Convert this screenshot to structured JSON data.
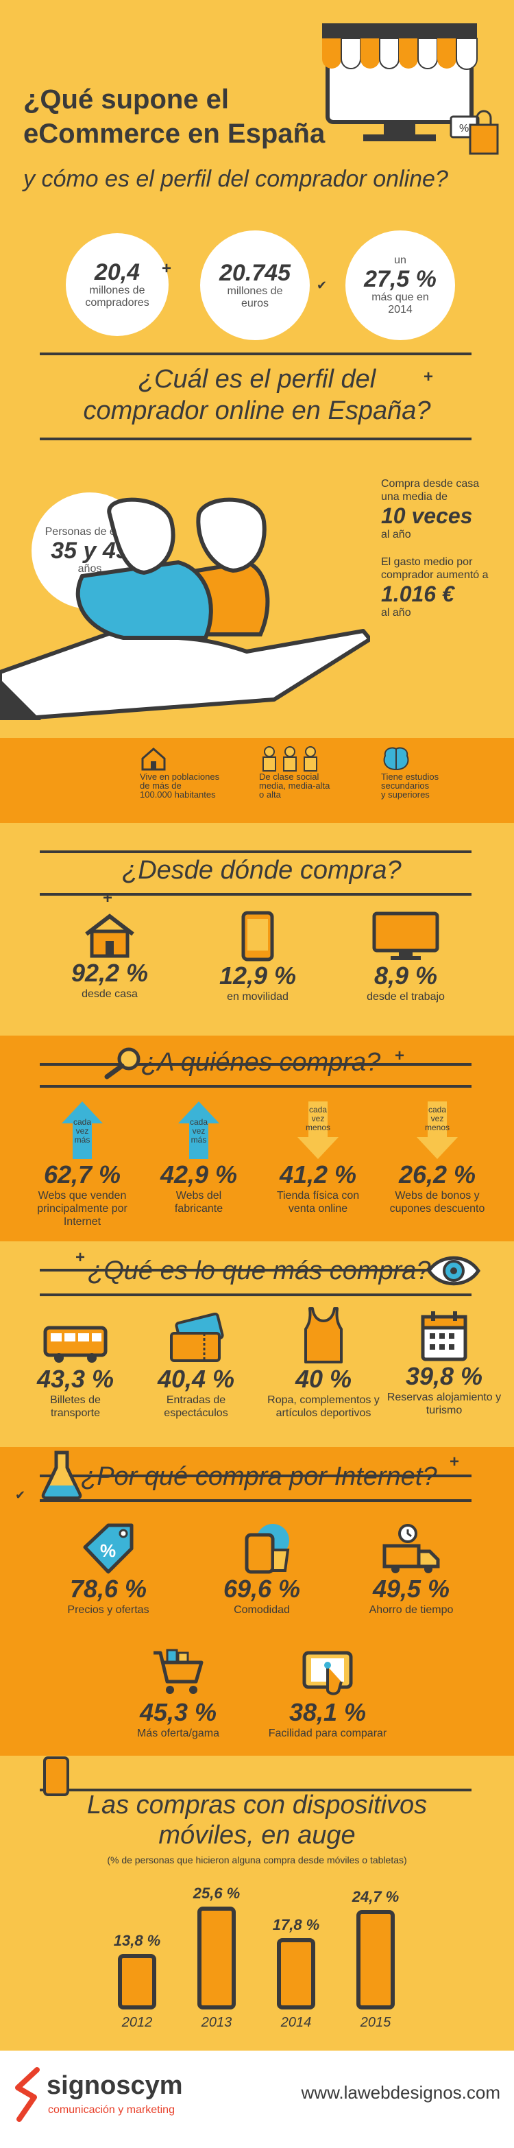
{
  "header": {
    "title_line1": "¿Qué supone el",
    "title_line2": "eCommerce en España",
    "subtitle": "y cómo es el perfil del comprador online?"
  },
  "key_stats": [
    {
      "value": "20,4",
      "label1": "millones de",
      "label2": "compradores"
    },
    {
      "value": "20.745",
      "label1": "millones de",
      "label2": "euros"
    },
    {
      "prefix": "un",
      "value": "27,5 %",
      "label1": "más que en",
      "label2": "2014"
    }
  ],
  "profile": {
    "heading_line1": "¿Cuál es el perfil del",
    "heading_line2": "comprador online en España?",
    "age_label": "Personas de entre",
    "age_value": "35 y 49",
    "age_unit": "años",
    "freq_label1": "Compra desde casa",
    "freq_label2": "una media de",
    "freq_value": "10 veces",
    "freq_unit": "al año",
    "spend_label1": "El gasto medio por",
    "spend_label2": "comprador aumentó a",
    "spend_value": "1.016 €",
    "spend_unit": "al año",
    "traits": [
      {
        "line1": "Vive en poblaciones",
        "line2": "de más de",
        "line3": "100.000 habitantes"
      },
      {
        "line1": "De clase social",
        "line2": "media, media-alta",
        "line3": "o alta"
      },
      {
        "line1": "Tiene estudios",
        "line2": "secundarios",
        "line3": "y superiores"
      }
    ]
  },
  "where": {
    "heading": "¿Desde dónde compra?",
    "items": [
      {
        "value": "92,2 %",
        "label": "desde casa"
      },
      {
        "value": "12,9 %",
        "label": "en movilidad"
      },
      {
        "value": "8,9 %",
        "label": "desde el trabajo"
      }
    ]
  },
  "whom": {
    "heading": "¿A quiénes compra?",
    "items": [
      {
        "tag1": "cada",
        "tag2": "vez",
        "tag3": "más",
        "value": "62,7 %",
        "line1": "Webs que venden",
        "line2": "principalmente por",
        "line3": "Internet"
      },
      {
        "tag1": "cada",
        "tag2": "vez",
        "tag3": "más",
        "value": "42,9 %",
        "line1": "Webs del",
        "line2": "fabricante",
        "line3": ""
      },
      {
        "tag1": "cada",
        "tag2": "vez",
        "tag3": "menos",
        "value": "41,2 %",
        "line1": "Tienda física con",
        "line2": "venta online",
        "line3": ""
      },
      {
        "tag1": "cada",
        "tag2": "vez",
        "tag3": "menos",
        "value": "26,2 %",
        "line1": "Webs de bonos y",
        "line2": "cupones descuento",
        "line3": ""
      }
    ]
  },
  "what": {
    "heading": "¿Qué es lo que más compra?",
    "items": [
      {
        "value": "43,3 %",
        "line1": "Billetes de",
        "line2": "transporte"
      },
      {
        "value": "40,4 %",
        "line1": "Entradas de",
        "line2": "espectáculos"
      },
      {
        "value": "40 %",
        "line1": "Ropa, complementos y",
        "line2": "artículos deportivos"
      },
      {
        "value": "39,8 %",
        "line1": "Reservas alojamiento y",
        "line2": "turismo"
      }
    ]
  },
  "why": {
    "heading": "¿Por qué compra por Internet?",
    "items": [
      {
        "value": "78,6 %",
        "label": "Precios y ofertas"
      },
      {
        "value": "69,6 %",
        "label": "Comodidad"
      },
      {
        "value": "49,5 %",
        "label": "Ahorro de tiempo"
      },
      {
        "value": "45,3 %",
        "label": "Más oferta/gama"
      },
      {
        "value": "38,1 %",
        "label": "Facilidad para comparar"
      }
    ]
  },
  "mobile": {
    "heading_line1": "Las compras con dispositivos",
    "heading_line2": "móviles, en auge",
    "note": "(% de personas que hicieron alguna compra desde móviles o tabletas)",
    "bars": [
      {
        "year": "2012",
        "value": "13,8 %",
        "level": 13.8
      },
      {
        "year": "2013",
        "value": "25,6 %",
        "level": 25.6
      },
      {
        "year": "2014",
        "value": "17,8 %",
        "level": 17.8
      },
      {
        "year": "2015",
        "value": "24,7 %",
        "level": 24.7
      }
    ]
  },
  "footer": {
    "brand": "signoscym",
    "tagline": "comunicación y marketing",
    "url": "www.lawebdesignos.com"
  },
  "colors": {
    "yellow": "#f9c54a",
    "orange": "#f59a14",
    "dark": "#3a3a3a",
    "blue": "#3bb3d7",
    "white": "#ffffff"
  }
}
